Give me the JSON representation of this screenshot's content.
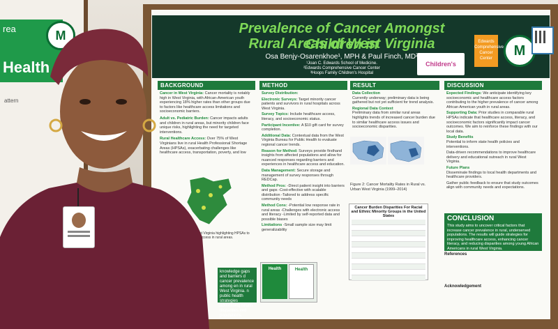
{
  "left_board": {
    "top_text": "rea",
    "big_text": "Health",
    "logo_letter": "M",
    "small_text": "attern"
  },
  "tack": "153",
  "poster": {
    "title_line1": "Prevalence of Cancer Amongst Children in",
    "title_line2": "Rural Areas of West Virginia",
    "authors": "Osa Benjy-Osarenkhoe¹, MPH & Paul Finch, MD²",
    "affiliations": [
      "¹Joan C. Edwards School of Medicine.",
      "²Edwards Comprehensive Cancer Center",
      "³Hoops Family Children's Hospital"
    ],
    "logos": {
      "hoops": "Children's",
      "edwards": "Edwards Comprehensive Cancer Center",
      "marshall": "M"
    },
    "sections": {
      "background": {
        "heading": "BACKGROUND",
        "paragraphs": [
          {
            "lead": "Cancer in West Virginia:",
            "text": "Cancer mortality is notably high in West Virginia, with African-American youth experiencing 18% higher rates than other groups due to factors like healthcare access limitations and socioeconomic barriers."
          },
          {
            "lead": "Adult vs. Pediatric Burden:",
            "text": "Cancer impacts adults and children in rural areas, but minority children face unique risks, highlighting the need for targeted interventions."
          },
          {
            "lead": "Rural Healthcare Access:",
            "text": "Over 75% of West Virginians live in rural Health Professional Shortage Areas (HPSAs), exacerbating challenges like healthcare access, transportation, poverty, and low"
          }
        ],
        "map_caption": "map of West Virginia highlighting HPSAs to healthcare access in rural areas.",
        "bottom_text": "knowledge gaps and barriers d cancer prevalence among en in rural West Virginia. n public health strategies addressing health disparities ved populations."
      },
      "method": {
        "heading": "METHOD",
        "items": [
          {
            "lead": "Survey Distribution:",
            "text": ""
          },
          {
            "lead": "Electronic Surveys:",
            "text": "Target minority cancer patients and survivors in rural hospitals across West Virginia."
          },
          {
            "lead": "Survey Topics:",
            "text": "Include healthcare access, literacy, and socioeconomic status."
          },
          {
            "lead": "Participant Incentive:",
            "text": "A $10 gift card for survey completion."
          },
          {
            "lead": "Additional Data:",
            "text": "Contextual data from the West Virginia Bureau for Public Health to evaluate regional cancer trends."
          },
          {
            "lead": "Reason for Method:",
            "text": "Surveys provide firsthand insights from affected populations and allow for nuanced responses regarding barriers and experiences in healthcare access and education."
          },
          {
            "lead": "Data Management:",
            "text": "Secure storage and management of survey responses through REDCap."
          },
          {
            "lead": "Method Pros:",
            "text": "-Direct patient insight into barriers and gaps -Cost-effective with scalable distribution -Tailored to address specific community needs"
          },
          {
            "lead": "Method Cons:",
            "text": "-Potential low response rate in rural areas -Challenges with electronic access and literacy -Limited by self-reported data and possible biases"
          },
          {
            "lead": "Limitations",
            "text": "-Small sample size may limit generalizability"
          }
        ]
      },
      "result": {
        "heading": "RESULT",
        "items": [
          {
            "lead": "Data Collection",
            "text": "Currently underway; preliminary data is being gathered but not yet sufficient for trend analysis."
          },
          {
            "lead": "Regional Data Context",
            "text": "Preliminary data from similar rural areas highlights trends of increased cancer burden due to similar healthcare access issues and socioeconomic disparities."
          }
        ],
        "figure_caption": "Figure 2: Cancer Mortality Rates in Rural vs. Urban West Virginia (1999–2014)",
        "table_title": "Cancer Burden Disparities For Racial and Ethnic Minority Groups in the United States"
      },
      "discussion": {
        "heading": "DISCUSSION",
        "items": [
          {
            "lead": "Expected Findings:",
            "text": "We anticipate identifying key socioeconomic and healthcare access factors contributing to the higher prevalence of cancer among African American youth in rural areas."
          },
          {
            "lead": "Supporting Data:",
            "text": "Prior studies in comparable rural HPSAs indicate that healthcare access, literacy, and socioeconomic factors significantly impact cancer outcomes. We aim to reinforce these findings with our local data."
          },
          {
            "lead": "Study Benefits",
            "text": "Potential to inform state health policies and interventions."
          },
          {
            "lead": "",
            "text": "Data-driven recommendations to improve healthcare delivery and educational outreach in rural West Virginia."
          },
          {
            "lead": "Future Plans",
            "text": "Disseminate findings to local health departments and healthcare providers."
          },
          {
            "lead": "",
            "text": "Gather public feedback to ensure that study outcomes align with community needs and expectations."
          }
        ]
      },
      "conclusion": {
        "heading": "CONCLUSION",
        "text": "This study aims to uncover critical factors that increase cancer prevalence in rural, underserved populations. The results will guide strategies for improving healthcare access, enhancing cancer literacy, and reducing disparities among young African Americans in rural West Virginia."
      },
      "references": {
        "heading": "References",
        "acknowledgement": "Acknowledgement"
      }
    },
    "small_images": {
      "a": "Health",
      "b": "Health"
    }
  },
  "colors": {
    "poster_header_bg": "#14382a",
    "title_green": "#7ed957",
    "section_green": "#1f7a3c",
    "frame_wood": "#7a5634",
    "headwrap": "#7a2a3a",
    "dress": "#6b2135"
  }
}
